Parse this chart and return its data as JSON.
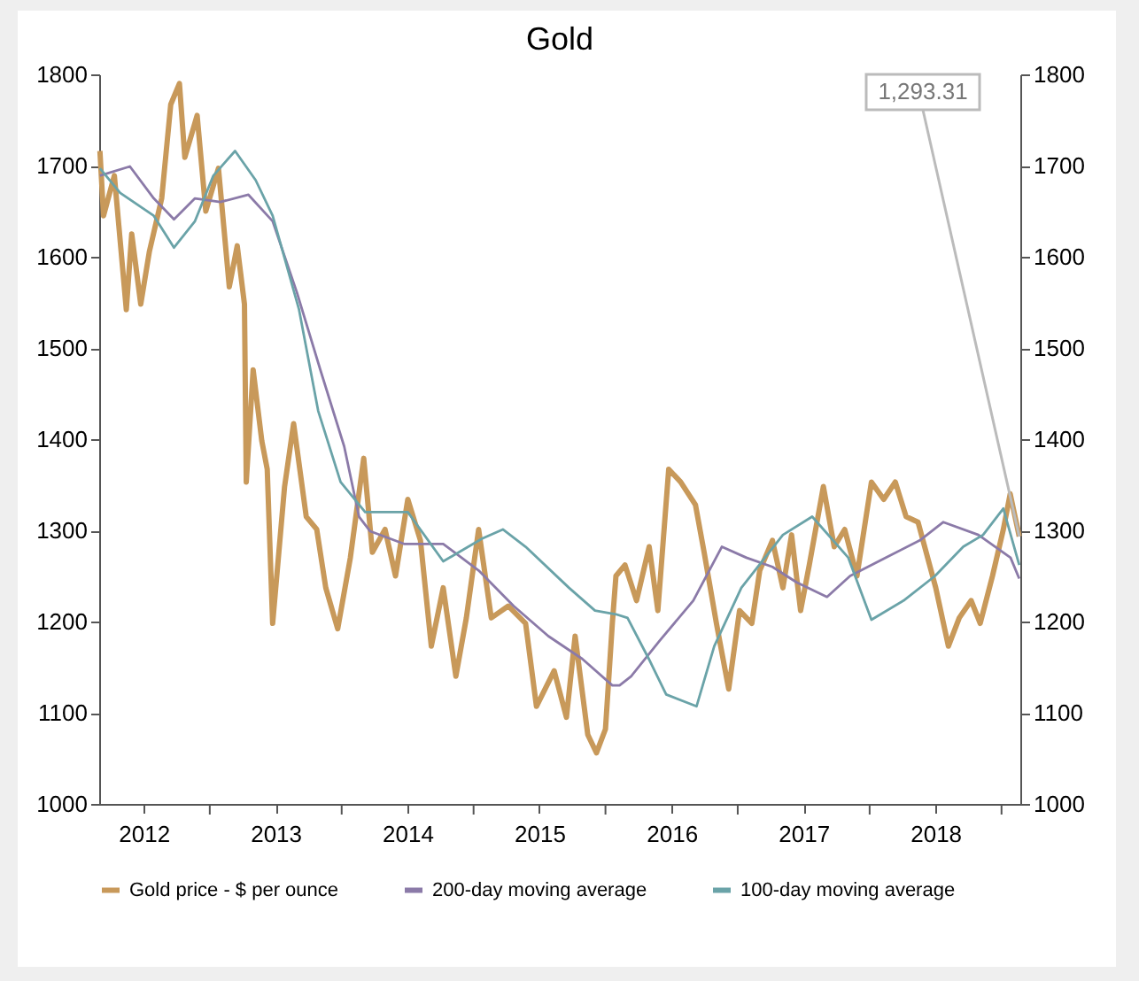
{
  "chart_data": {
    "type": "line",
    "title": "Gold",
    "xlim": [
      "2012-03-01",
      "2019-02-22"
    ],
    "xticks": [
      {
        "value": "2012-07-02",
        "label": "2012"
      },
      {
        "value": "2013-01-01",
        "label": null
      },
      {
        "value": "2013-07-02",
        "label": "2013"
      },
      {
        "value": "2014-01-01",
        "label": null
      },
      {
        "value": "2014-07-02",
        "label": "2014"
      },
      {
        "value": "2015-01-01",
        "label": null
      },
      {
        "value": "2015-07-02",
        "label": "2015"
      },
      {
        "value": "2016-01-01",
        "label": null
      },
      {
        "value": "2016-07-02",
        "label": "2016"
      },
      {
        "value": "2017-01-01",
        "label": null
      },
      {
        "value": "2017-07-02",
        "label": "2017"
      },
      {
        "value": "2018-01-01",
        "label": null
      },
      {
        "value": "2018-07-02",
        "label": "2018"
      },
      {
        "value": "2019-01-01",
        "label": null
      }
    ],
    "ylim": [
      1000,
      1800
    ],
    "yticks": [
      1000,
      1100,
      1200,
      1300,
      1400,
      1500,
      1600,
      1700,
      1800
    ],
    "y2lim": [
      1000,
      1800
    ],
    "y2ticks": [
      1000,
      1100,
      1200,
      1300,
      1400,
      1500,
      1600,
      1700,
      1800
    ],
    "grid": false,
    "legend": "bottom",
    "annotations": [
      {
        "text": "1,293.31",
        "x": "2019-02-19",
        "y": 1293.31
      }
    ],
    "series": [
      {
        "name": "Gold price - $ per ounce",
        "color": "#c8995a",
        "x": [
          "2012-03-03",
          "2012-03-13",
          "2012-04-12",
          "2012-05-15",
          "2012-05-30",
          "2012-06-24",
          "2012-07-18",
          "2012-08-21",
          "2012-09-15",
          "2012-10-09",
          "2012-10-24",
          "2012-11-27",
          "2012-12-21",
          "2013-01-25",
          "2013-02-24",
          "2013-03-18",
          "2013-04-07",
          "2013-04-12",
          "2013-05-01",
          "2013-05-25",
          "2013-06-09",
          "2013-06-24",
          "2013-07-27",
          "2013-08-21",
          "2013-09-25",
          "2013-10-24",
          "2013-11-18",
          "2013-12-21",
          "2014-01-25",
          "2014-03-03",
          "2014-03-27",
          "2014-05-01",
          "2014-05-30",
          "2014-07-03",
          "2014-08-07",
          "2014-09-06",
          "2014-10-09",
          "2014-11-13",
          "2014-12-12",
          "2015-01-15",
          "2015-02-19",
          "2015-04-07",
          "2015-05-25",
          "2015-06-24",
          "2015-08-12",
          "2015-09-15",
          "2015-10-09",
          "2015-11-13",
          "2015-12-07",
          "2016-01-01",
          "2016-01-20",
          "2016-01-30",
          "2016-02-24",
          "2016-03-27",
          "2016-05-01",
          "2016-05-25",
          "2016-06-24",
          "2016-07-27",
          "2016-09-06",
          "2016-09-30",
          "2016-11-03",
          "2016-12-07",
          "2017-01-06",
          "2017-02-09",
          "2017-03-03",
          "2017-04-07",
          "2017-05-06",
          "2017-05-30",
          "2017-06-24",
          "2017-07-18",
          "2017-08-26",
          "2017-09-25",
          "2017-10-24",
          "2017-11-27",
          "2018-01-06",
          "2018-02-09",
          "2018-03-13",
          "2018-04-12",
          "2018-05-15",
          "2018-07-03",
          "2018-08-07",
          "2018-09-06",
          "2018-10-09",
          "2018-11-03",
          "2018-12-07",
          "2019-01-06",
          "2019-01-25",
          "2019-02-19"
        ],
        "values": [
          1716,
          1645,
          1689,
          1542,
          1625,
          1548,
          1606,
          1664,
          1767,
          1790,
          1709,
          1755,
          1650,
          1697,
          1567,
          1612,
          1548,
          1353,
          1476,
          1398,
          1367,
          1198,
          1348,
          1417,
          1315,
          1301,
          1237,
          1192,
          1270,
          1379,
          1276,
          1301,
          1250,
          1334,
          1289,
          1173,
          1237,
          1140,
          1204,
          1301,
          1204,
          1217,
          1198,
          1107,
          1146,
          1095,
          1184,
          1076,
          1056,
          1082,
          1198,
          1250,
          1262,
          1223,
          1282,
          1212,
          1367,
          1353,
          1328,
          1276,
          1198,
          1126,
          1212,
          1198,
          1256,
          1289,
          1237,
          1295,
          1212,
          1262,
          1348,
          1282,
          1301,
          1250,
          1353,
          1334,
          1353,
          1315,
          1309,
          1237,
          1173,
          1204,
          1223,
          1198,
          1250,
          1301,
          1340,
          1293.31
        ]
      },
      {
        "name": "200-day moving average",
        "color": "#8b7aa8",
        "x": [
          "2012-03-03",
          "2012-05-25",
          "2012-07-30",
          "2012-09-24",
          "2012-11-21",
          "2013-01-30",
          "2013-04-18",
          "2013-06-24",
          "2013-08-30",
          "2013-11-03",
          "2014-01-08",
          "2014-02-18",
          "2014-03-21",
          "2014-06-24",
          "2014-10-09",
          "2015-01-15",
          "2015-04-22",
          "2015-07-27",
          "2015-10-29",
          "2016-01-20",
          "2016-02-09",
          "2016-03-12",
          "2016-05-30",
          "2016-08-31",
          "2016-11-18",
          "2017-01-25",
          "2017-04-07",
          "2017-06-13",
          "2017-09-05",
          "2017-11-08",
          "2018-02-14",
          "2018-05-20",
          "2018-07-24",
          "2018-10-29",
          "2019-01-26",
          "2019-02-19"
        ],
        "values": [
          1689,
          1699,
          1664,
          1641,
          1664,
          1660,
          1668,
          1639,
          1561,
          1476,
          1392,
          1315,
          1299,
          1285,
          1285,
          1256,
          1217,
          1184,
          1159,
          1130,
          1130,
          1140,
          1179,
          1223,
          1282,
          1270,
          1260,
          1243,
          1227,
          1250,
          1270,
          1289,
          1309,
          1295,
          1270,
          1247
        ]
      },
      {
        "name": "100-day moving average",
        "color": "#6aa3a8",
        "x": [
          "2012-03-03",
          "2012-04-28",
          "2012-07-30",
          "2012-09-24",
          "2012-11-21",
          "2013-01-11",
          "2013-03-12",
          "2013-05-08",
          "2013-06-24",
          "2013-09-05",
          "2013-10-28",
          "2013-12-29",
          "2014-03-07",
          "2014-07-03",
          "2014-10-09",
          "2015-01-25",
          "2015-03-23",
          "2015-05-25",
          "2015-09-22",
          "2015-12-03",
          "2016-01-30",
          "2016-03-02",
          "2016-04-30",
          "2016-06-17",
          "2016-09-09",
          "2016-10-28",
          "2017-01-11",
          "2017-05-06",
          "2017-07-26",
          "2017-11-03",
          "2018-01-06",
          "2018-04-05",
          "2018-07-01",
          "2018-09-17",
          "2018-11-11",
          "2019-01-06",
          "2019-02-19"
        ],
        "values": [
          1697,
          1670,
          1645,
          1610,
          1639,
          1689,
          1716,
          1684,
          1645,
          1542,
          1431,
          1353,
          1320,
          1320,
          1266,
          1291,
          1301,
          1282,
          1237,
          1212,
          1208,
          1204,
          1159,
          1120,
          1107,
          1173,
          1237,
          1295,
          1315,
          1270,
          1202,
          1223,
          1250,
          1282,
          1295,
          1324,
          1262
        ]
      }
    ]
  }
}
